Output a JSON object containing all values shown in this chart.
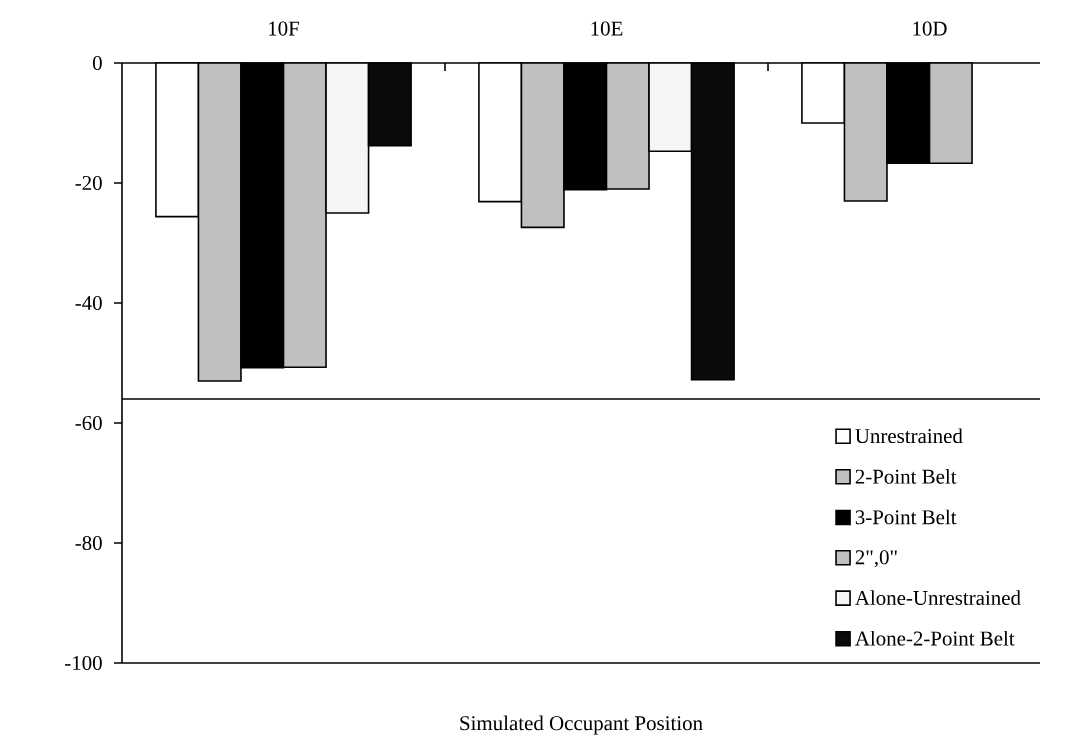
{
  "chart_data": {
    "type": "bar",
    "xlabel": "Simulated Occupant Position",
    "categories": [
      "10F",
      "10E",
      "10D"
    ],
    "series": [
      {
        "name": "Unrestrained",
        "color": "#ffffff",
        "values": [
          -25.6,
          -23.1,
          -10
        ]
      },
      {
        "name": "2-Point Belt",
        "color": "#c0c0c0",
        "values": [
          -53,
          -27.4,
          -23
        ]
      },
      {
        "name": "3-Point Belt",
        "color": "#000000",
        "values": [
          -50.8,
          -21.1,
          -16.7
        ]
      },
      {
        "name": "2\",0\"",
        "color": "#c0c0c0",
        "values": [
          -50.7,
          -21,
          -16.7
        ]
      },
      {
        "name": "Alone-Unrestrained",
        "color": "#f5f5f5",
        "values": [
          -25,
          -14.7,
          null
        ]
      },
      {
        "name": "Alone-2-Point Belt",
        "color": "#0a0a0a",
        "values": [
          -13.8,
          -52.8,
          null
        ]
      }
    ],
    "ylim": [
      -100,
      0
    ],
    "yticks": [
      -100,
      -80,
      -60,
      -40,
      -20,
      0
    ],
    "ref_lines": [
      {
        "axis": "y",
        "value": -56
      }
    ],
    "legend": "bottom right",
    "grid": false
  }
}
